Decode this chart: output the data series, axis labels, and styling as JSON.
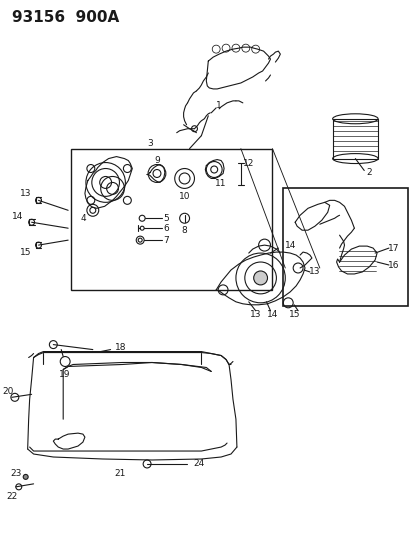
{
  "title": "93156  900A",
  "bg_color": "#ffffff",
  "fig_width": 4.14,
  "fig_height": 5.33,
  "dpi": 100,
  "lw": 0.8,
  "color": "#1a1a1a",
  "title_fontsize": 11,
  "label_fontsize": 6.5
}
